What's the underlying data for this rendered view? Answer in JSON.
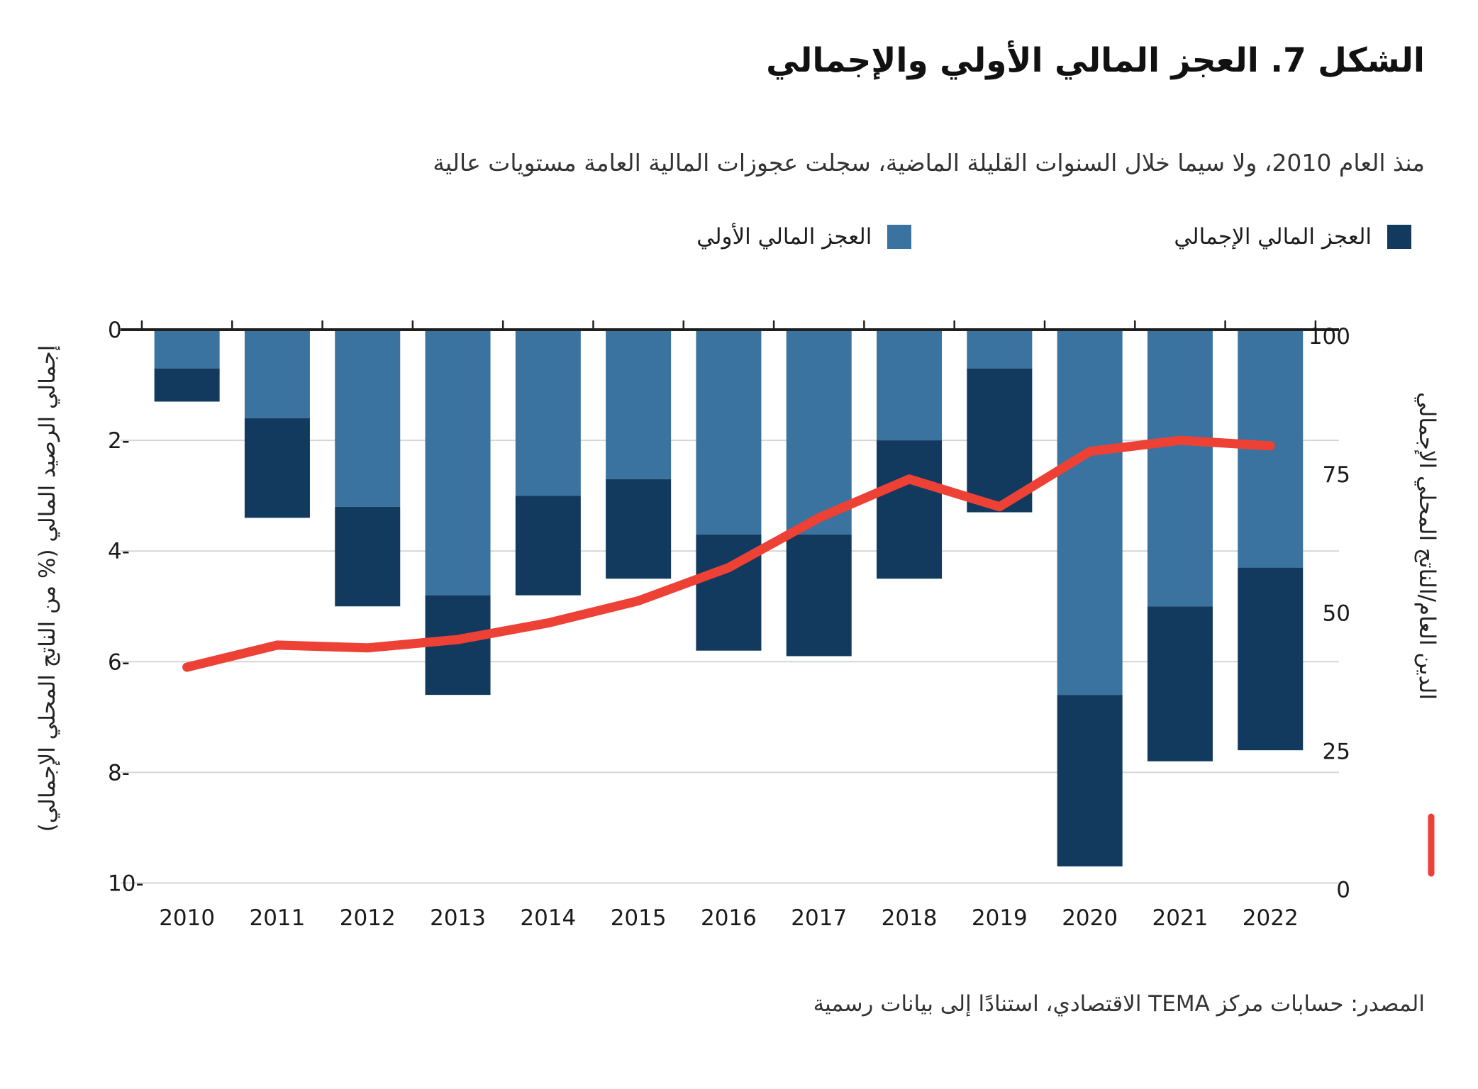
{
  "header": {
    "title": "الشكل 7. العجز المالي الأولي والإجمالي",
    "subtitle": "منذ العام 2010، ولا سيما خلال السنوات القليلة الماضية، سجلت عجوزات المالية العامة مستويات عالية"
  },
  "legend": {
    "overall_label": "العجز المالي الإجمالي",
    "primary_label": "العجز المالي الأولي"
  },
  "axes": {
    "left_title": "إجمالي الرصيد المالي (% من الناتج المحلي الإجمالي)",
    "right_title": "الدين العام/الناتج المحلي الإجمالي"
  },
  "footer": {
    "source": "المصدر: حسابات مركز TEMA الاقتصادي، استنادًا إلى بيانات رسمية"
  },
  "colors": {
    "primary_bar": "#3A739F",
    "overall_bar": "#113A5E",
    "debt_line": "#ED4136",
    "grid": "#D6D6D6",
    "axis_line": "#1F1F1F"
  },
  "chart_data": {
    "type": "bar+line",
    "title": "الشكل 7. العجز المالي الأولي والإجمالي",
    "categories": [
      2010,
      2011,
      2012,
      2013,
      2014,
      2015,
      2016,
      2017,
      2018,
      2019,
      2020,
      2021,
      2022
    ],
    "series": [
      {
        "name": "العجز المالي الأولي",
        "type": "bar",
        "axis": "left",
        "color": "#3A739F",
        "values": [
          -0.7,
          -1.6,
          -3.2,
          -4.8,
          -3.0,
          -2.7,
          -3.7,
          -3.7,
          -2.0,
          -0.7,
          -6.6,
          -5.0,
          -4.3
        ]
      },
      {
        "name": "العجز المالي الإجمالي",
        "type": "bar",
        "axis": "left",
        "color": "#113A5E",
        "values": [
          -1.3,
          -3.4,
          -5.0,
          -6.6,
          -4.8,
          -4.5,
          -5.8,
          -5.9,
          -4.5,
          -3.3,
          -9.7,
          -7.8,
          -7.6
        ]
      },
      {
        "name": "الدين العام/الناتج المحلي الإجمالي",
        "type": "line",
        "axis": "right",
        "color": "#ED4136",
        "values": [
          39,
          43,
          42.5,
          44,
          47,
          51,
          57,
          66,
          73,
          68,
          78,
          80,
          79
        ]
      }
    ],
    "left_axis": {
      "label": "إجمالي الرصيد المالي (% من الناتج المحلي الإجمالي)",
      "ticks": [
        0,
        -2,
        -4,
        -6,
        -8,
        -10
      ],
      "range": [
        0,
        -10
      ]
    },
    "right_axis": {
      "label": "الدين العام/الناتج المحلي الإجمالي",
      "ticks": [
        100,
        75,
        50,
        25,
        0
      ],
      "range": [
        0,
        100
      ]
    },
    "grid": "horizontal",
    "legend_position": "top-right",
    "bar_style": "stacked-overlay: dark segment extends light segment down to overall value"
  }
}
